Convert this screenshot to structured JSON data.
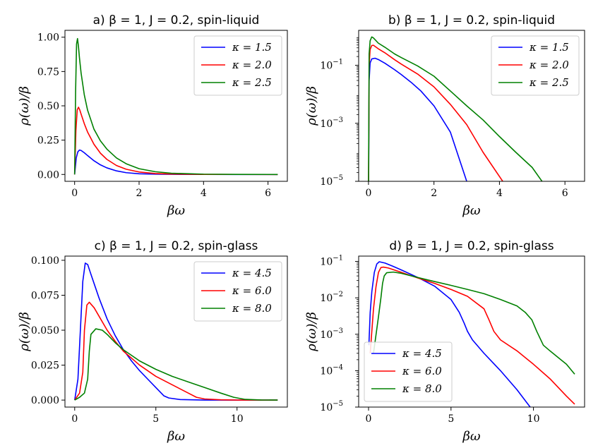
{
  "figure": {
    "xlabel": "βω",
    "ylabel": "ρ(ω)/β"
  },
  "chart_data": [
    {
      "panel": "a",
      "type": "line",
      "title": "a) β = 1, J = 0.2, spin-liquid",
      "xlabel": "βω",
      "ylabel": "ρ(ω)/β",
      "yscale": "linear",
      "xlim": [
        -0.3,
        6.6
      ],
      "ylim": [
        -0.05,
        1.05
      ],
      "xticks": [
        0,
        2,
        4,
        6
      ],
      "xtick_labels": [
        "0",
        "2",
        "4",
        "6"
      ],
      "yticks": [
        0,
        0.25,
        0.5,
        0.75,
        1.0
      ],
      "ytick_labels": [
        "0.00",
        "0.25",
        "0.50",
        "0.75",
        "1.00"
      ],
      "legend_position": "top-right",
      "series": [
        {
          "name": "κ = 1.5",
          "color": "#0000ff",
          "x": [
            0,
            0.05,
            0.1,
            0.15,
            0.2,
            0.3,
            0.4,
            0.6,
            0.8,
            1.0,
            1.3,
            1.6,
            2.0,
            2.5,
            3.0,
            4.0,
            5.0,
            6.3
          ],
          "y": [
            0,
            0.12,
            0.165,
            0.178,
            0.175,
            0.158,
            0.138,
            0.1,
            0.07,
            0.048,
            0.026,
            0.013,
            0.005,
            0.002,
            0.0008,
            0.0001,
            0,
            0
          ]
        },
        {
          "name": "κ = 2.0",
          "color": "#ff0000",
          "x": [
            0,
            0.04,
            0.08,
            0.12,
            0.16,
            0.2,
            0.3,
            0.4,
            0.6,
            0.8,
            1.0,
            1.3,
            1.6,
            2.0,
            2.5,
            3.0,
            4.0,
            5.0,
            6.3
          ],
          "y": [
            0,
            0.32,
            0.47,
            0.49,
            0.47,
            0.44,
            0.37,
            0.31,
            0.22,
            0.155,
            0.11,
            0.065,
            0.038,
            0.018,
            0.007,
            0.003,
            0.0005,
            0.0001,
            0
          ]
        },
        {
          "name": "κ = 2.5",
          "color": "#008000",
          "x": [
            0,
            0.03,
            0.06,
            0.09,
            0.12,
            0.15,
            0.2,
            0.3,
            0.4,
            0.6,
            0.8,
            1.0,
            1.3,
            1.6,
            2.0,
            2.5,
            3.0,
            4.0,
            5.0,
            6.3
          ],
          "y": [
            0,
            0.6,
            0.95,
            0.99,
            0.93,
            0.85,
            0.74,
            0.58,
            0.47,
            0.33,
            0.245,
            0.185,
            0.12,
            0.078,
            0.042,
            0.02,
            0.009,
            0.002,
            0.0004,
            0
          ]
        }
      ]
    },
    {
      "panel": "b",
      "type": "line",
      "title": "b) β = 1, J = 0.2, spin-liquid",
      "xlabel": "βω",
      "ylabel": "ρ(ω)/β",
      "yscale": "log",
      "xlim": [
        -0.3,
        6.6
      ],
      "ylim": [
        1e-05,
        1.6
      ],
      "xticks": [
        0,
        2,
        4,
        6
      ],
      "xtick_labels": [
        "0",
        "2",
        "4",
        "6"
      ],
      "yticks": [
        0.1,
        0.001,
        1e-05
      ],
      "ytick_labels": [
        "10",
        "10",
        "10"
      ],
      "ytick_exponents": [
        "−1",
        "−3",
        "−5"
      ],
      "legend_position": "top-right",
      "series": [
        {
          "name": "κ = 1.5",
          "color": "#0000ff",
          "x": [
            0.005,
            0.02,
            0.05,
            0.1,
            0.2,
            0.3,
            0.5,
            0.8,
            1.0,
            1.3,
            1.6,
            2.0,
            2.5,
            3.0
          ],
          "y": [
            1e-05,
            0.03,
            0.12,
            0.165,
            0.175,
            0.158,
            0.118,
            0.07,
            0.048,
            0.026,
            0.013,
            0.004,
            0.0005,
            1e-05
          ]
        },
        {
          "name": "κ = 2.0",
          "color": "#ff0000",
          "x": [
            0.003,
            0.02,
            0.05,
            0.1,
            0.15,
            0.3,
            0.5,
            0.8,
            1.0,
            1.5,
            2.0,
            2.5,
            3.0,
            3.5,
            4.1
          ],
          "y": [
            1e-05,
            0.1,
            0.35,
            0.48,
            0.49,
            0.37,
            0.27,
            0.155,
            0.11,
            0.05,
            0.018,
            0.0045,
            0.0009,
            0.0001,
            1e-05
          ]
        },
        {
          "name": "κ = 2.5",
          "color": "#008000",
          "x": [
            0.002,
            0.02,
            0.05,
            0.1,
            0.15,
            0.3,
            0.5,
            0.8,
            1.0,
            1.5,
            2.0,
            2.5,
            3.0,
            3.5,
            4.0,
            4.5,
            5.0,
            5.3
          ],
          "y": [
            1e-05,
            0.25,
            0.7,
            0.95,
            0.88,
            0.58,
            0.42,
            0.245,
            0.185,
            0.095,
            0.042,
            0.013,
            0.004,
            0.0013,
            0.00035,
            0.0001,
            3e-05,
            1e-05
          ]
        }
      ]
    },
    {
      "panel": "c",
      "type": "line",
      "title": "c) β = 1, J = 0.2, spin-glass",
      "xlabel": "βω",
      "ylabel": "ρ(ω)/β",
      "yscale": "linear",
      "xlim": [
        -0.6,
        13.1
      ],
      "ylim": [
        -0.005,
        0.103
      ],
      "xticks": [
        0,
        5,
        10
      ],
      "xtick_labels": [
        "0",
        "5",
        "10"
      ],
      "yticks": [
        0,
        0.025,
        0.05,
        0.075,
        0.1
      ],
      "ytick_labels": [
        "0.000",
        "0.025",
        "0.050",
        "0.075",
        "0.100"
      ],
      "legend_position": "top-right",
      "series": [
        {
          "name": "κ = 4.5",
          "color": "#0000ff",
          "x": [
            0,
            0.2,
            0.35,
            0.5,
            0.65,
            0.8,
            1.0,
            1.5,
            2.0,
            2.5,
            3.0,
            3.5,
            4.0,
            4.5,
            5.0,
            5.5,
            5.8,
            6.5,
            8.0,
            10.0,
            12.5
          ],
          "y": [
            0,
            0.015,
            0.05,
            0.085,
            0.098,
            0.097,
            0.09,
            0.073,
            0.058,
            0.046,
            0.036,
            0.028,
            0.021,
            0.015,
            0.009,
            0.003,
            0.0015,
            0.0004,
            0,
            0,
            0
          ]
        },
        {
          "name": "κ = 6.0",
          "color": "#ff0000",
          "x": [
            0,
            0.3,
            0.5,
            0.6,
            0.75,
            0.9,
            1.2,
            1.6,
            2.0,
            2.5,
            3.0,
            4.0,
            5.0,
            6.0,
            7.0,
            7.5,
            8.0,
            9.0,
            10.0,
            12.5
          ],
          "y": [
            0,
            0.005,
            0.02,
            0.05,
            0.068,
            0.07,
            0.066,
            0.058,
            0.05,
            0.042,
            0.035,
            0.025,
            0.017,
            0.011,
            0.005,
            0.002,
            0.0008,
            0.0002,
            0,
            0
          ]
        },
        {
          "name": "κ = 8.0",
          "color": "#008000",
          "x": [
            0,
            0.3,
            0.6,
            0.8,
            0.9,
            1.0,
            1.3,
            1.7,
            2.0,
            2.5,
            3.0,
            4.0,
            5.0,
            6.0,
            7.0,
            8.0,
            9.0,
            9.8,
            10.5,
            11.5,
            12.5
          ],
          "y": [
            0,
            0.002,
            0.005,
            0.015,
            0.035,
            0.047,
            0.051,
            0.05,
            0.047,
            0.041,
            0.036,
            0.028,
            0.022,
            0.017,
            0.013,
            0.009,
            0.005,
            0.002,
            0.0005,
            0.0001,
            0
          ]
        }
      ]
    },
    {
      "panel": "d",
      "type": "line",
      "title": "d) β = 1, J = 0.2, spin-glass",
      "xlabel": "βω",
      "ylabel": "ρ(ω)/β",
      "yscale": "log",
      "xlim": [
        -0.6,
        13.1
      ],
      "ylim": [
        1e-05,
        0.14
      ],
      "xticks": [
        0,
        5,
        10
      ],
      "xtick_labels": [
        "0",
        "5",
        "10"
      ],
      "yticks": [
        0.1,
        0.01,
        0.001,
        0.0001,
        1e-05
      ],
      "ytick_labels": [
        "10",
        "10",
        "10",
        "10",
        "10"
      ],
      "ytick_exponents": [
        "−1",
        "−2",
        "−3",
        "−4",
        "−5"
      ],
      "legend_position": "lower-left",
      "series": [
        {
          "name": "κ = 4.5",
          "color": "#0000ff",
          "x": [
            0.02,
            0.1,
            0.2,
            0.35,
            0.5,
            0.65,
            1.0,
            1.5,
            2.0,
            3.0,
            4.0,
            5.0,
            5.5,
            5.8,
            6.0,
            6.3,
            7.0,
            8.0,
            9.0,
            9.8
          ],
          "y": [
            0.0005,
            0.004,
            0.015,
            0.05,
            0.085,
            0.098,
            0.09,
            0.073,
            0.058,
            0.036,
            0.021,
            0.009,
            0.004,
            0.002,
            0.0012,
            0.0007,
            0.0003,
            0.0001,
            3e-05,
            1e-05
          ]
        },
        {
          "name": "κ = 6.0",
          "color": "#ff0000",
          "x": [
            0.1,
            0.3,
            0.45,
            0.6,
            0.75,
            0.9,
            1.2,
            2.0,
            3.0,
            4.0,
            5.0,
            6.0,
            7.0,
            7.3,
            7.6,
            8.0,
            9.0,
            10.0,
            11.0,
            12.0,
            12.5
          ],
          "y": [
            0.0003,
            0.005,
            0.02,
            0.05,
            0.068,
            0.07,
            0.066,
            0.05,
            0.035,
            0.025,
            0.017,
            0.011,
            0.005,
            0.0025,
            0.0012,
            0.0007,
            0.00035,
            0.00015,
            6e-05,
            2e-05,
            1.2e-05
          ]
        },
        {
          "name": "κ = 8.0",
          "color": "#008000",
          "x": [
            0.3,
            0.6,
            0.75,
            0.85,
            0.95,
            1.1,
            1.5,
            2.0,
            3.0,
            4.0,
            5.0,
            6.0,
            7.0,
            8.0,
            9.0,
            9.5,
            9.9,
            10.2,
            10.6,
            11.0,
            12.0,
            12.5
          ],
          "y": [
            0.0003,
            0.003,
            0.01,
            0.025,
            0.04,
            0.049,
            0.051,
            0.047,
            0.036,
            0.028,
            0.022,
            0.017,
            0.013,
            0.009,
            0.006,
            0.004,
            0.0025,
            0.0012,
            0.0005,
            0.00035,
            0.00015,
            8e-05
          ]
        }
      ]
    }
  ]
}
